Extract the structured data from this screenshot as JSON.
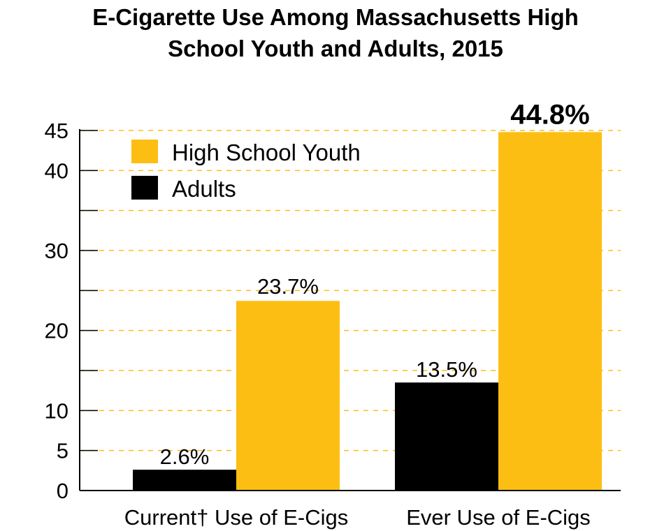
{
  "chart_data": {
    "type": "bar",
    "title_line1": "E-Cigarette Use Among Massachusetts High",
    "title_line2": "School Youth and Adults, 2015",
    "categories": [
      "Current† Use of E-Cigs",
      "Ever Use of E-Cigs"
    ],
    "series": [
      {
        "name": "Adults",
        "color": "#000000",
        "values": [
          2.6,
          13.5
        ],
        "labels": [
          "2.6%",
          "13.5%"
        ]
      },
      {
        "name": "High School Youth",
        "color": "#FDBE14",
        "values": [
          23.7,
          44.8
        ],
        "labels": [
          "23.7%",
          "44.8%"
        ]
      }
    ],
    "legend_order": [
      "High School Youth",
      "Adults"
    ],
    "legend_position": "top-left",
    "ylim": [
      0,
      45
    ],
    "y_tick_labels": [
      "0",
      "5",
      "10",
      "20",
      "30",
      "40",
      "45"
    ],
    "grid": "dashed horizontal",
    "grid_color": "#FDBE14",
    "emphasized_label": "44.8%"
  }
}
